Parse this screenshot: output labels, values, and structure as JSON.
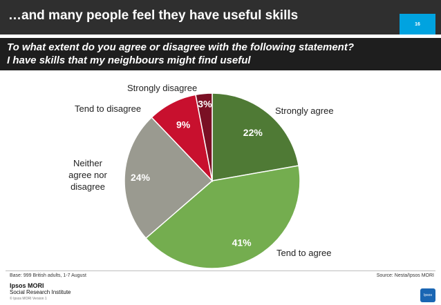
{
  "header": {
    "title": "…and many people feel they have useful skills",
    "page_number": "16"
  },
  "question": {
    "line1": "To what extent do you agree or disagree with the following statement?",
    "line2": "I have skills that my neighbours might find useful"
  },
  "chart_data": {
    "type": "pie",
    "title": "",
    "start_angle_deg": 0,
    "direction": "clockwise",
    "slices": [
      {
        "label": "Strongly agree",
        "value": 22,
        "value_label": "22%",
        "color": "#4f7a35"
      },
      {
        "label": "Tend to agree",
        "value": 41,
        "value_label": "41%",
        "color": "#74ad4f"
      },
      {
        "label": "Neither agree nor disagree",
        "value": 24,
        "value_label": "24%",
        "color": "#9a9a90"
      },
      {
        "label": "Tend to disagree",
        "value": 9,
        "value_label": "9%",
        "color": "#c8102e"
      },
      {
        "label": "Strongly disagree",
        "value": 3,
        "value_label": "3%",
        "color": "#7a1024"
      }
    ]
  },
  "footer": {
    "base": "Base: 999 British adults, 1-7 August",
    "source": "Source: Nesta/Ipsos MORI",
    "logo_line1": "Ipsos MORI",
    "logo_line2": "Social Research Institute",
    "copyright": "© Ipsos MORI    Version 1",
    "corner_logo": "Ipsos"
  },
  "colors": {
    "title_bar": "#2f2f2f",
    "subtitle_bar": "#1e1e1e",
    "badge": "#00a3e0"
  }
}
